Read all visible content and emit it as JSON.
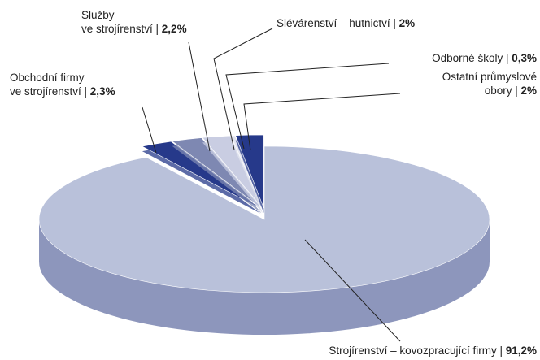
{
  "chart_data": {
    "type": "pie3d",
    "categories": [
      "Strojírenství – kovozpracující firmy",
      "Obchodní firmy\nve strojírenství",
      "Služby\nve strojírenství",
      "Slévárenství – hutnictví",
      "Odborné školy",
      "Ostatní průmyslové\nobory"
    ],
    "values": [
      91.2,
      2.3,
      2.2,
      2,
      0.3,
      2
    ],
    "value_labels": [
      "91,2%",
      "2,3%",
      "2,2%",
      "2%",
      "0,3%",
      "2%"
    ],
    "label_separator": " | ",
    "colors": [
      "#b9c1da",
      "#26398a",
      "#7e88b2",
      "#c9cde2",
      "#e2e4ef",
      "#26398a"
    ],
    "side_color": "#8d96bc"
  }
}
